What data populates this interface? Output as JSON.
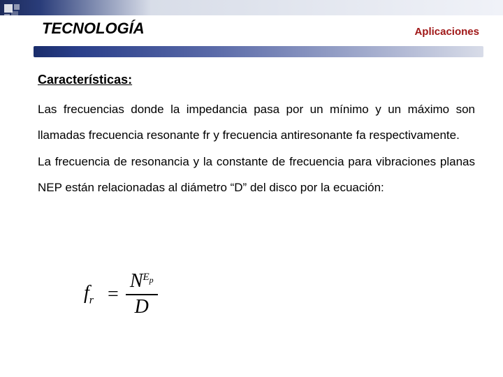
{
  "header": {
    "title": "TECNOLOGÍA",
    "subtitle": "Aplicaciones"
  },
  "section": {
    "label": "Características:"
  },
  "paragraphs": {
    "p1": "Las frecuencias donde la impedancia pasa por un mínimo y un máximo son llamadas frecuencia resonante fr y frecuencia antiresonante fa respectivamente.",
    "p2": "La frecuencia de resonancia y la constante de frecuencia para vibraciones planas NEP están relacionadas al diámetro “D” del disco por la ecuación:"
  },
  "equation": {
    "lhs_base": "f",
    "lhs_sub": "r",
    "num_base": "N",
    "num_sup_left": "E",
    "num_sup_right": "p",
    "den": "D"
  },
  "colors": {
    "accent_dark": "#1a2d6b",
    "accent_light": "#d8dce8",
    "subtitle": "#a01818",
    "text": "#000000",
    "background": "#ffffff"
  },
  "typography": {
    "title_fontsize": 22,
    "subtitle_fontsize": 15,
    "body_fontsize": 17,
    "equation_fontsize": 28,
    "font_family_body": "Arial",
    "font_family_math": "Cambria Math"
  }
}
